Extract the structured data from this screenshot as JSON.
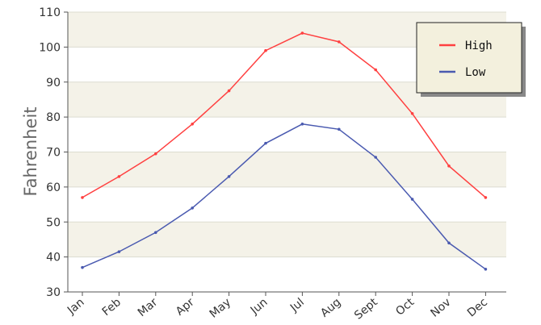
{
  "chart_data": {
    "type": "line",
    "title": "",
    "xlabel": "",
    "ylabel": "Fahrenheit",
    "categories": [
      "Jan",
      "Feb",
      "Mar",
      "Apr",
      "May",
      "Jun",
      "Jul",
      "Aug",
      "Sept",
      "Oct",
      "Nov",
      "Dec"
    ],
    "series": [
      {
        "name": "High",
        "color": "#ff4040",
        "values": [
          57,
          63,
          69.5,
          78,
          87.5,
          99,
          104,
          101.5,
          93.5,
          81,
          66,
          57
        ]
      },
      {
        "name": "Low",
        "color": "#4a5ab0",
        "values": [
          37,
          41.5,
          47,
          54,
          63,
          72.5,
          78,
          76.5,
          68.5,
          56.5,
          44,
          36.5
        ]
      }
    ],
    "ylim": [
      30,
      110
    ],
    "yticks": [
      30,
      40,
      50,
      60,
      70,
      80,
      90,
      100,
      110
    ],
    "grid": true,
    "band_colors": [
      "#f4f2e8",
      "#ffffff"
    ],
    "legend_position": "top-right"
  }
}
